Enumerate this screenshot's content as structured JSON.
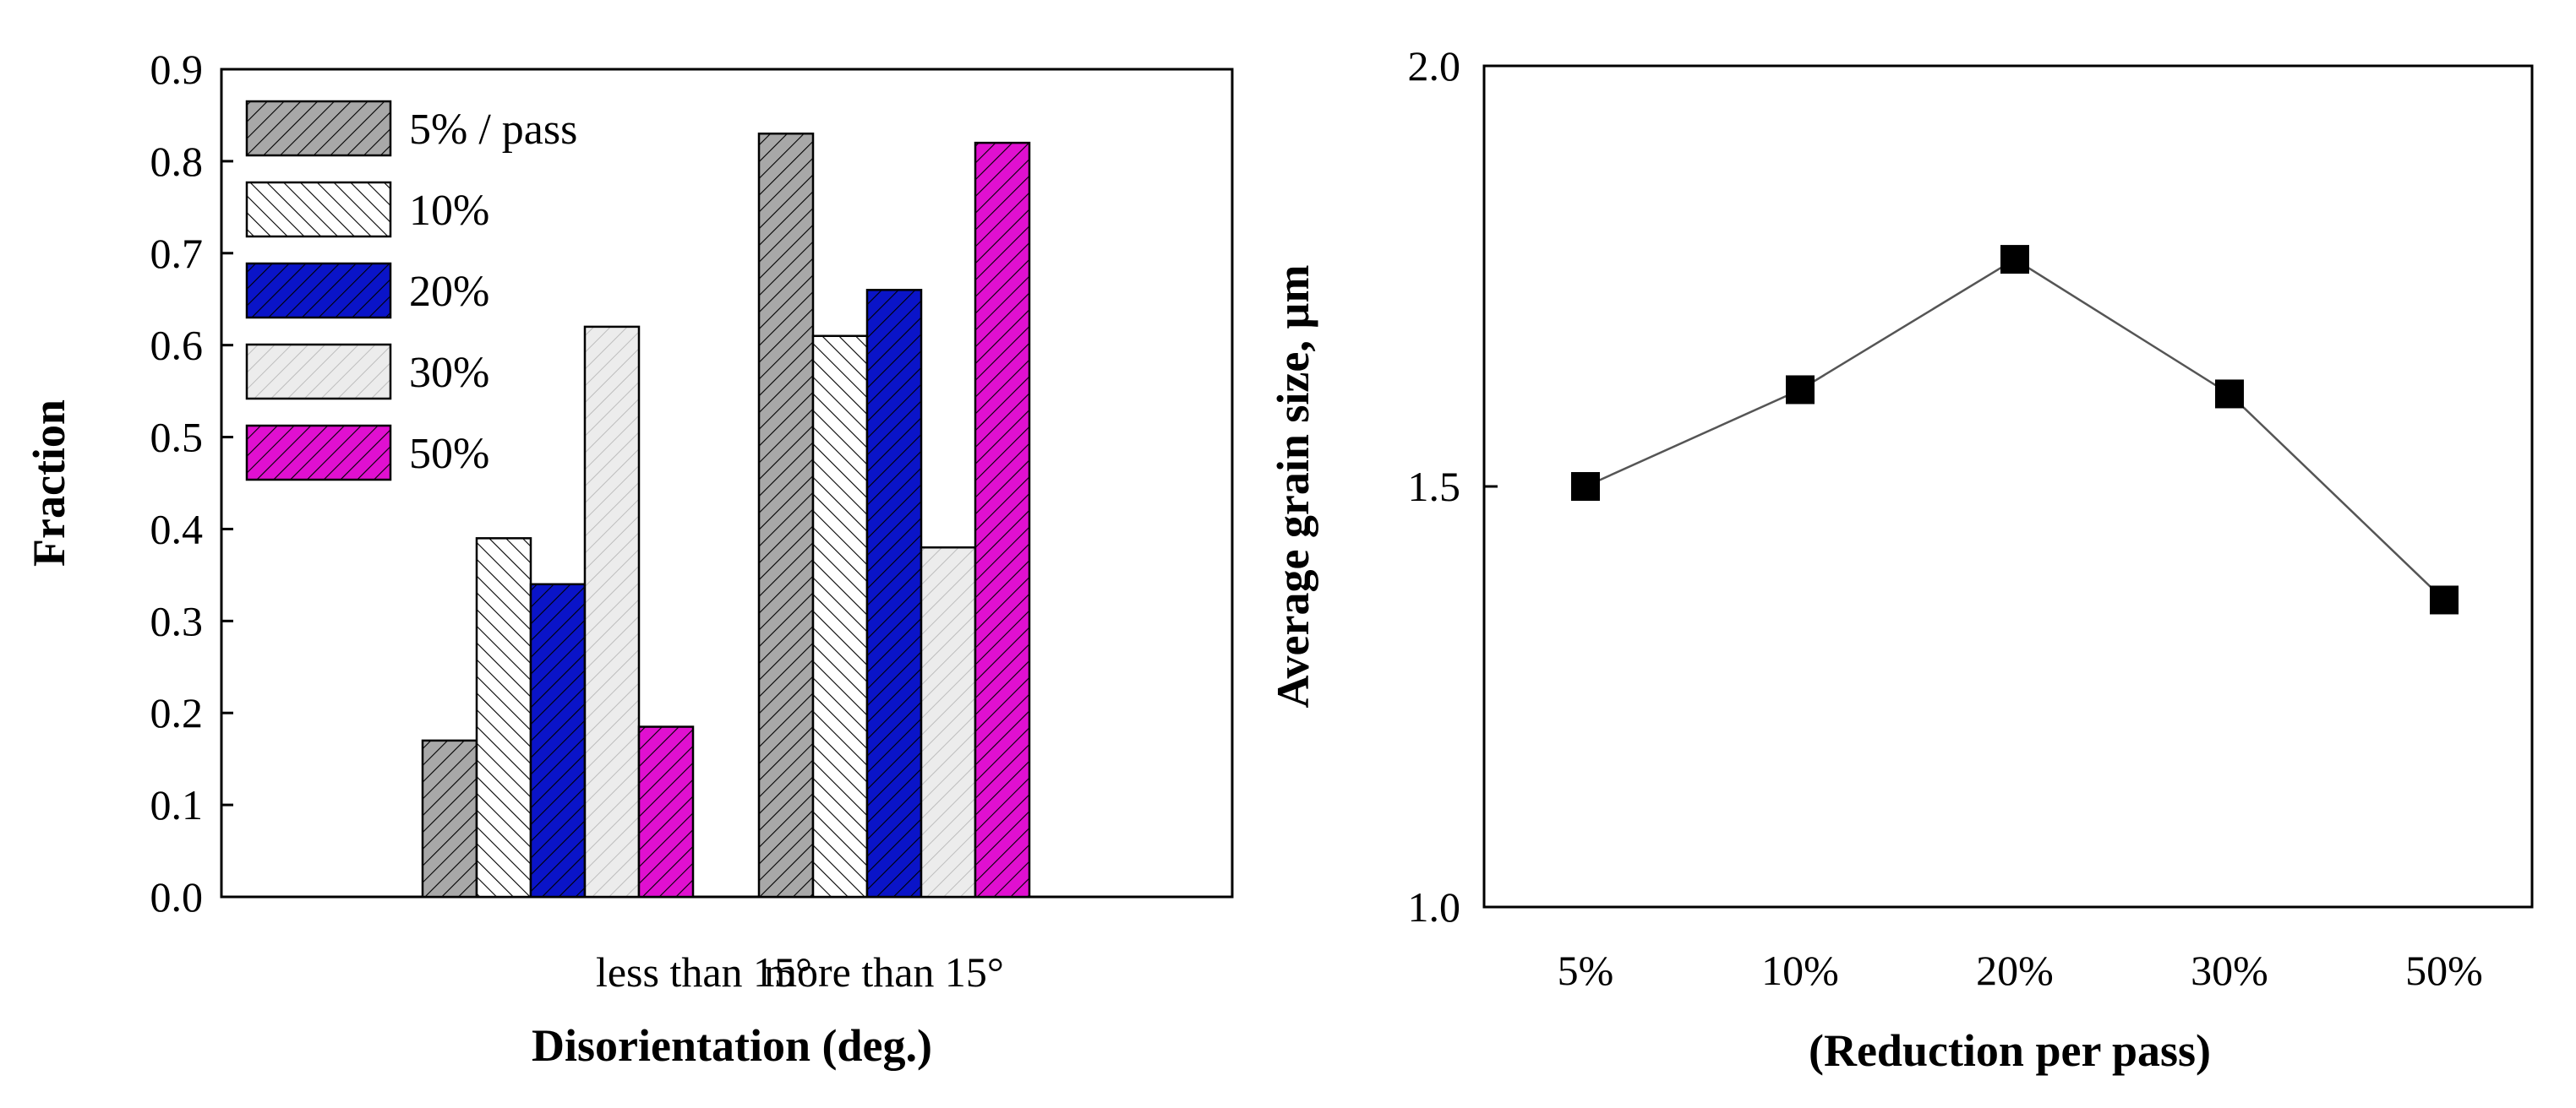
{
  "chart_data": [
    {
      "type": "bar",
      "title": "",
      "xlabel": "Disorientation (deg.)",
      "ylabel": "Fraction",
      "ylim": [
        0,
        0.9
      ],
      "yticks": [
        "0.0",
        "0.1",
        "0.2",
        "0.3",
        "0.4",
        "0.5",
        "0.6",
        "0.7",
        "0.8",
        "0.9"
      ],
      "categories": [
        "less than 15°",
        "more than 15°"
      ],
      "legend_position": "top-left",
      "series": [
        {
          "name": "5% / pass",
          "values": [
            0.17,
            0.83
          ],
          "color": "#a8a8a8",
          "pattern": "hatch-right"
        },
        {
          "name": "10%",
          "values": [
            0.39,
            0.61
          ],
          "color": "#ffffff",
          "pattern": "hatch-left"
        },
        {
          "name": "20%",
          "values": [
            0.34,
            0.66
          ],
          "color": "#0a14c8",
          "pattern": "hatch-right"
        },
        {
          "name": "30%",
          "values": [
            0.62,
            0.38
          ],
          "color": "#ececec",
          "pattern": "hatch-right-light"
        },
        {
          "name": "50%",
          "values": [
            0.185,
            0.82
          ],
          "color": "#e010d0",
          "pattern": "hatch-right"
        }
      ]
    },
    {
      "type": "line",
      "title": "",
      "xlabel": "(Reduction per pass)",
      "ylabel": "Average grain size, µm",
      "ylim": [
        1.0,
        2.0
      ],
      "yticks": [
        "1.0",
        "1.5",
        "2.0"
      ],
      "categories": [
        "5%",
        "10%",
        "20%",
        "30%",
        "50%"
      ],
      "series": [
        {
          "name": "grain size",
          "values": [
            1.5,
            1.615,
            1.77,
            1.61,
            1.365
          ],
          "color": "#000000",
          "marker": "square"
        }
      ]
    }
  ]
}
